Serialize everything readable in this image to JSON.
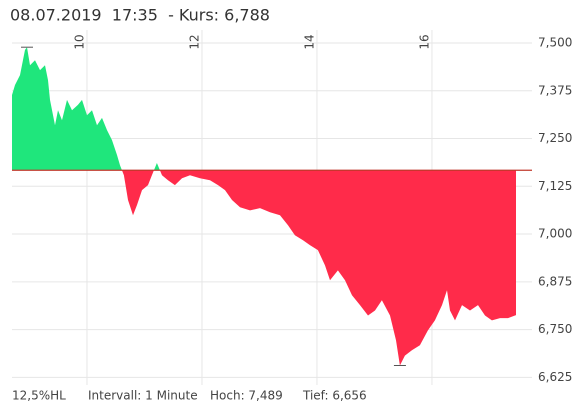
{
  "chart_data": {
    "type": "area",
    "title": "08.07.2019  17:35  - Kurs: 6,788",
    "x": [
      8.696,
      8.748,
      8.835,
      8.922,
      8.957,
      9.009,
      9.096,
      9.183,
      9.27,
      9.322,
      9.357,
      9.443,
      9.496,
      9.565,
      9.652,
      9.739,
      9.843,
      9.913,
      10.0,
      10.087,
      10.174,
      10.261,
      10.348,
      10.435,
      10.522,
      10.574,
      10.643,
      10.713,
      10.8,
      10.87,
      10.957,
      11.061,
      11.13,
      11.217,
      11.304,
      11.409,
      11.53,
      11.652,
      11.791,
      11.965,
      12.139,
      12.278,
      12.4,
      12.522,
      12.661,
      12.835,
      13.009,
      13.183,
      13.357,
      13.496,
      13.617,
      13.757,
      13.878,
      14.017,
      14.139,
      14.226,
      14.365,
      14.487,
      14.609,
      14.748,
      14.887,
      15.009,
      15.13,
      15.27,
      15.374,
      15.443,
      15.53,
      15.652,
      15.791,
      15.93,
      16.052,
      16.174,
      16.261,
      16.313,
      16.4,
      16.522,
      16.661,
      16.8,
      16.922,
      17.043,
      17.183,
      17.322,
      17.461
    ],
    "values": [
      7.364,
      7.39,
      7.416,
      7.482,
      7.489,
      7.442,
      7.455,
      7.429,
      7.442,
      7.403,
      7.351,
      7.285,
      7.324,
      7.298,
      7.351,
      7.324,
      7.338,
      7.351,
      7.311,
      7.324,
      7.285,
      7.304,
      7.272,
      7.246,
      7.207,
      7.18,
      7.154,
      7.089,
      7.049,
      7.076,
      7.115,
      7.128,
      7.154,
      7.186,
      7.154,
      7.141,
      7.128,
      7.146,
      7.154,
      7.146,
      7.141,
      7.128,
      7.115,
      7.089,
      7.07,
      7.062,
      7.068,
      7.057,
      7.049,
      7.023,
      6.997,
      6.984,
      6.971,
      6.958,
      6.918,
      6.879,
      6.905,
      6.879,
      6.84,
      6.814,
      6.787,
      6.8,
      6.827,
      6.787,
      6.722,
      6.656,
      6.682,
      6.696,
      6.709,
      6.748,
      6.774,
      6.814,
      6.853,
      6.8,
      6.774,
      6.814,
      6.8,
      6.814,
      6.787,
      6.774,
      6.78,
      6.78,
      6.788
    ],
    "baseline": 7.167,
    "up_color": "#1fe67c",
    "down_color": "#ff2b4a",
    "baseline_color": "#c0392b",
    "xlim": [
      8.696,
      17.74
    ],
    "xticks": [
      10,
      12,
      14,
      16
    ],
    "ylim": [
      6.605,
      7.534
    ],
    "yticks": [
      {
        "value": 7.5,
        "label": "7,500"
      },
      {
        "value": 7.375,
        "label": "7,375"
      },
      {
        "value": 7.25,
        "label": "7,250"
      },
      {
        "value": 7.125,
        "label": "7,125"
      },
      {
        "value": 7.0,
        "label": "7,000"
      },
      {
        "value": 6.875,
        "label": "6,875"
      },
      {
        "value": 6.75,
        "label": "6,750"
      },
      {
        "value": 6.625,
        "label": "6,625"
      }
    ],
    "grid": true,
    "footer": [
      "12,5%HL",
      "Intervall: 1 Minute",
      "Hoch: 7,489",
      "Tief: 6,656"
    ]
  }
}
